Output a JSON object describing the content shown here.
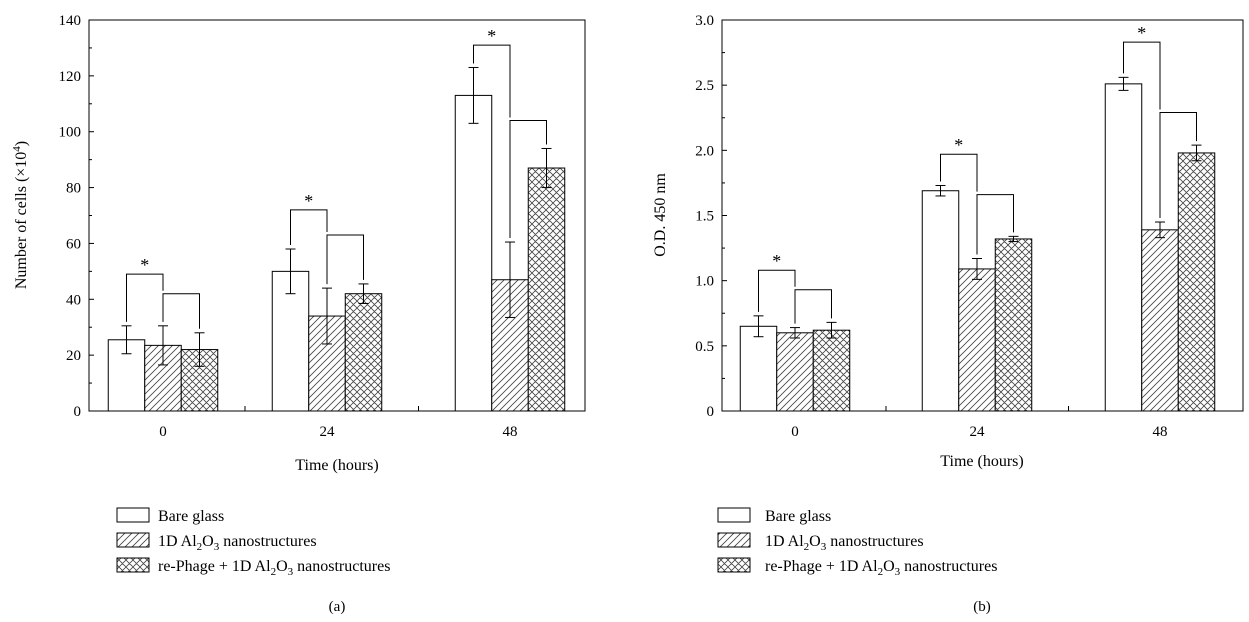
{
  "chart_data": [
    {
      "panel": "(a)",
      "type": "bar",
      "categories": [
        "0",
        "24",
        "48"
      ],
      "xlabel": "Time (hours)",
      "ylabel": "Number of cells (×10⁴)",
      "ylim": [
        0,
        140
      ],
      "yticks": [
        "0",
        "20",
        "40",
        "60",
        "80",
        "100",
        "120",
        "140"
      ],
      "grid": false,
      "legend_placement": "below",
      "series": [
        {
          "name": "Bare glass",
          "pattern": "none",
          "values": [
            25.5,
            50.0,
            113.0
          ],
          "errors": [
            5.0,
            8.0,
            10.0
          ]
        },
        {
          "name": "1D Al₂O₃ nanostructures",
          "pattern": "diagonal",
          "values": [
            23.5,
            34.0,
            47.0
          ],
          "errors": [
            7.0,
            10.0,
            13.5
          ]
        },
        {
          "name": "re-Phage + 1D Al₂O₃ nanostructures",
          "pattern": "crosshatch",
          "values": [
            22.0,
            42.0,
            87.0
          ],
          "errors": [
            6.0,
            3.5,
            7.0
          ]
        }
      ],
      "significance": [
        {
          "group": 0,
          "from": 0,
          "to": 1,
          "label": "*",
          "bracket_y": 49,
          "child_y": 42
        },
        {
          "group": 0,
          "from": 1,
          "to": 2,
          "bracket_y": 42
        },
        {
          "group": 1,
          "from": 0,
          "to": 1,
          "label": "*",
          "bracket_y": 72,
          "child_y": 63
        },
        {
          "group": 1,
          "from": 1,
          "to": 2,
          "bracket_y": 63
        },
        {
          "group": 2,
          "from": 0,
          "to": 1,
          "label": "*",
          "bracket_y": 131,
          "child_y": 104
        },
        {
          "group": 2,
          "from": 1,
          "to": 2,
          "bracket_y": 104
        }
      ]
    },
    {
      "panel": "(b)",
      "type": "bar",
      "categories": [
        "0",
        "24",
        "48"
      ],
      "xlabel": "Time (hours)",
      "ylabel": "O.D. 450 nm",
      "ylim": [
        0,
        3.0
      ],
      "yticks": [
        "0",
        "0.5",
        "1.0",
        "1.5",
        "2.0",
        "2.5",
        "3.0"
      ],
      "grid": false,
      "legend_placement": "below",
      "series": [
        {
          "name": "Bare glass",
          "pattern": "none",
          "values": [
            0.65,
            1.69,
            2.51
          ],
          "errors": [
            0.08,
            0.04,
            0.05
          ]
        },
        {
          "name": "1D Al₂O₃ nanostructures",
          "pattern": "diagonal",
          "values": [
            0.6,
            1.09,
            1.39
          ],
          "errors": [
            0.04,
            0.08,
            0.06
          ]
        },
        {
          "name": "re-Phage + 1D Al₂O₃ nanostructures",
          "pattern": "crosshatch",
          "values": [
            0.62,
            1.32,
            1.98
          ],
          "errors": [
            0.06,
            0.02,
            0.06
          ]
        }
      ],
      "significance": [
        {
          "group": 0,
          "from": 0,
          "to": 1,
          "label": "*",
          "bracket_y": 1.08,
          "child_y": 0.93
        },
        {
          "group": 0,
          "from": 1,
          "to": 2,
          "bracket_y": 0.93
        },
        {
          "group": 1,
          "from": 0,
          "to": 1,
          "label": "*",
          "bracket_y": 1.97,
          "child_y": 1.66
        },
        {
          "group": 1,
          "from": 1,
          "to": 2,
          "bracket_y": 1.66
        },
        {
          "group": 2,
          "from": 0,
          "to": 1,
          "label": "*",
          "bracket_y": 2.83,
          "child_y": 2.29
        },
        {
          "group": 2,
          "from": 1,
          "to": 2,
          "bracket_y": 2.29
        }
      ]
    }
  ]
}
